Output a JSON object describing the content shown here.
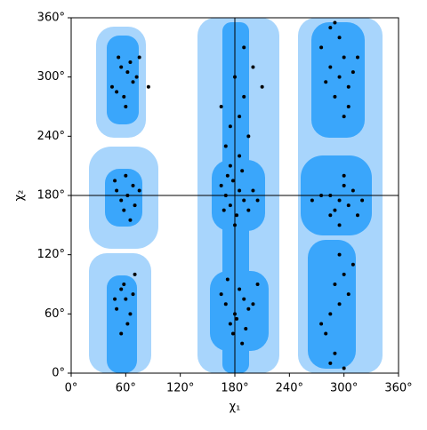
{
  "chart_data": {
    "type": "scatter",
    "xlabel": "χ₁",
    "ylabel": "χ₂",
    "xlim": [
      0,
      360
    ],
    "ylim": [
      0,
      360
    ],
    "xticks": [
      {
        "value": 0,
        "label": "0°"
      },
      {
        "value": 60,
        "label": "60°"
      },
      {
        "value": 120,
        "label": "120°"
      },
      {
        "value": 180,
        "label": "180°"
      },
      {
        "value": 240,
        "label": "240°"
      },
      {
        "value": 300,
        "label": "300°"
      },
      {
        "value": 360,
        "label": "360°"
      }
    ],
    "yticks": [
      {
        "value": 0,
        "label": "0°"
      },
      {
        "value": 60,
        "label": "60°"
      },
      {
        "value": 120,
        "label": "120°"
      },
      {
        "value": 180,
        "label": "180°"
      },
      {
        "value": 240,
        "label": "240°"
      },
      {
        "value": 300,
        "label": "300°"
      },
      {
        "value": 360,
        "label": "360°"
      }
    ],
    "crosshair": [
      180,
      180
    ],
    "color": "#000000",
    "x": [
      55,
      62,
      68,
      50,
      58,
      72,
      65,
      45,
      60,
      75,
      52,
      85,
      50,
      55,
      62,
      68,
      58,
      70,
      48,
      65,
      75,
      60,
      55,
      60,
      50,
      65,
      58,
      48,
      68,
      62,
      55,
      70,
      175,
      185,
      170,
      190,
      180,
      195,
      165,
      200,
      185,
      175,
      210,
      190,
      170,
      175,
      185,
      190,
      178,
      165,
      195,
      182,
      172,
      200,
      188,
      168,
      180,
      205,
      170,
      180,
      190,
      175,
      185,
      195,
      165,
      200,
      178,
      188,
      205,
      172,
      182,
      192,
      285,
      295,
      305,
      290,
      300,
      280,
      310,
      295,
      285,
      305,
      275,
      300,
      315,
      290,
      285,
      295,
      305,
      290,
      300,
      275,
      310,
      265,
      295,
      320,
      300,
      285,
      315,
      290,
      295,
      285,
      300,
      280,
      295,
      290,
      305,
      275,
      300,
      285,
      310
    ],
    "values": [
      310,
      305,
      295,
      285,
      280,
      300,
      315,
      290,
      270,
      320,
      320,
      290,
      185,
      175,
      180,
      190,
      165,
      170,
      195,
      155,
      185,
      200,
      85,
      75,
      65,
      60,
      90,
      75,
      80,
      50,
      40,
      100,
      250,
      260,
      230,
      280,
      300,
      240,
      270,
      310,
      220,
      210,
      290,
      330,
      180,
      170,
      185,
      175,
      195,
      190,
      165,
      160,
      200,
      185,
      205,
      165,
      150,
      175,
      70,
      60,
      75,
      50,
      85,
      65,
      80,
      70,
      40,
      30,
      90,
      95,
      55,
      45,
      310,
      300,
      290,
      280,
      320,
      295,
      305,
      340,
      350,
      270,
      330,
      260,
      320,
      355,
      180,
      175,
      170,
      165,
      190,
      180,
      185,
      175,
      150,
      175,
      200,
      160,
      160,
      90,
      70,
      60,
      100,
      40,
      120,
      20,
      80,
      50,
      5,
      10,
      110
    ]
  }
}
